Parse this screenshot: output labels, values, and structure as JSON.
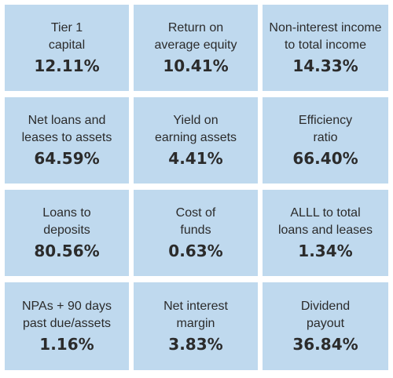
{
  "tiles": [
    {
      "label": "Tier 1\ncapital",
      "value": "12.11%"
    },
    {
      "label": "Return on\naverage equity",
      "value": "10.41%"
    },
    {
      "label": "Non-interest income\nto total income",
      "value": "14.33%"
    },
    {
      "label": "Net loans and\nleases to assets",
      "value": "64.59%"
    },
    {
      "label": "Yield on\nearning assets",
      "value": "4.41%"
    },
    {
      "label": "Efficiency\nratio",
      "value": "66.40%"
    },
    {
      "label": "Loans to\ndeposits",
      "value": "80.56%"
    },
    {
      "label": "Cost of\nfunds",
      "value": "0.63%"
    },
    {
      "label": "ALLL to total\nloans and leases",
      "value": "1.34%"
    },
    {
      "label": "NPAs + 90 days\npast due/assets",
      "value": "1.16%"
    },
    {
      "label": "Net interest\nmargin",
      "value": "3.83%"
    },
    {
      "label": "Dividend\npayout",
      "value": "36.84%"
    }
  ],
  "colors": {
    "tile_background": "#bfd9ee",
    "text": "#2b2b2b",
    "gutter": "#ffffff"
  }
}
